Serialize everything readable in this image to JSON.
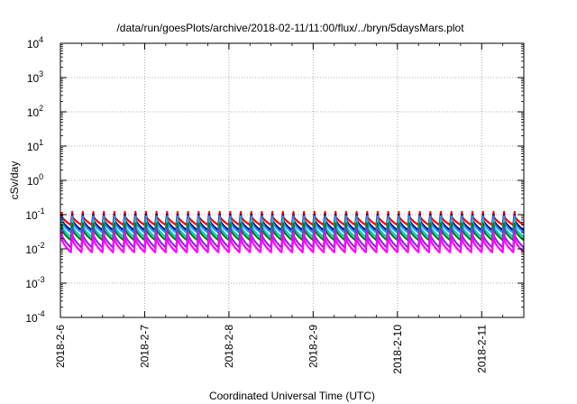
{
  "chart_data": {
    "type": "line",
    "title": "/data/run/goesPlots/archive/2018-02-11/11:00/flux/../bryn/5daysMars.plot",
    "xlabel": "Coordinated Universal Time (UTC)",
    "ylabel": "cSv/day",
    "yscale": "log",
    "ylim": [
      0.0001,
      10000
    ],
    "xlim": [
      "2018-02-06 00:00",
      "2018-02-11 12:00"
    ],
    "grid": true,
    "y_ticks": [
      {
        "base": "10",
        "exp": "-4"
      },
      {
        "base": "10",
        "exp": "-3"
      },
      {
        "base": "10",
        "exp": "-2"
      },
      {
        "base": "10",
        "exp": "-1"
      },
      {
        "base": "10",
        "exp": "0"
      },
      {
        "base": "10",
        "exp": "1"
      },
      {
        "base": "10",
        "exp": "2"
      },
      {
        "base": "10",
        "exp": "3"
      },
      {
        "base": "10",
        "exp": "4"
      }
    ],
    "x_ticks": [
      "2018-2-6",
      "2018-2-7",
      "2018-2-8",
      "2018-2-9",
      "2018-2-10",
      "2018-2-11"
    ],
    "sawtooth_period_hours": 3,
    "series": [
      {
        "color": "#ff0000",
        "peak": 0.12,
        "trough": 0.05
      },
      {
        "color": "#000080",
        "peak": 0.1,
        "trough": 0.035
      },
      {
        "color": "#1e90ff",
        "peak": 0.09,
        "trough": 0.03
      },
      {
        "color": "#00ced1",
        "peak": 0.07,
        "trough": 0.022
      },
      {
        "color": "#008000",
        "peak": 0.055,
        "trough": 0.018
      },
      {
        "color": "#8a2be2",
        "peak": 0.04,
        "trough": 0.011
      },
      {
        "color": "#ff00ff",
        "peak": 0.03,
        "trough": 0.008
      }
    ]
  }
}
